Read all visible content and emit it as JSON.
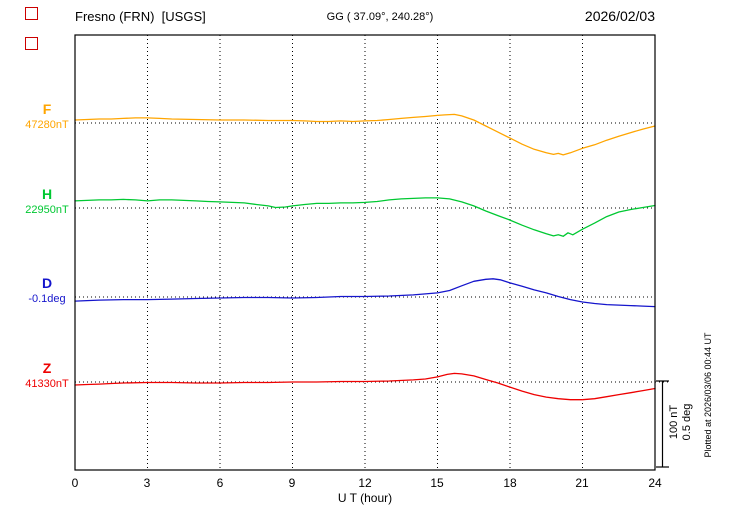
{
  "header": {
    "station": "Fresno (FRN)  [USGS]",
    "coords": "GG ( 37.09°, 240.28°)",
    "date": "2026/02/03"
  },
  "axis": {
    "xlabel": "U T (hour)",
    "ticks": [
      0,
      3,
      6,
      9,
      12,
      15,
      18,
      21,
      24
    ]
  },
  "scalebar": {
    "nt": "100 nT",
    "deg": "0.5 deg"
  },
  "footer": {
    "plotted_at": "Plotted at 2026/03/06 00:44 UT"
  },
  "icons": [
    "broken-image-icon",
    "broken-image-icon"
  ],
  "chart_data": {
    "type": "line",
    "title": "Fresno (FRN)  [USGS]",
    "xlabel": "U T (hour)",
    "x_range": [
      0,
      24
    ],
    "x_ticks": [
      0,
      3,
      6,
      9,
      12,
      15,
      18,
      21,
      24
    ],
    "grid": "dotted vertical every 3 h, dotted baseline per trace",
    "scale": {
      "per_division_nT": 100,
      "per_division_deg": 0.5
    },
    "series": [
      {
        "name": "F",
        "unit": "nT",
        "baseline_value": 47280,
        "baseline_label": "47280nT",
        "color": "#FFA500",
        "x": [
          0,
          0.5,
          1,
          1.5,
          2,
          2.5,
          3,
          3.5,
          4,
          5,
          6,
          7,
          8,
          9,
          9.5,
          10,
          10.5,
          11,
          11.5,
          12,
          12.5,
          13,
          13.5,
          14,
          14.5,
          15,
          15.3,
          15.7,
          16,
          16.5,
          17,
          17.5,
          18,
          18.5,
          19,
          19.5,
          19.8,
          20,
          20.2,
          20.5,
          21,
          21.5,
          22,
          22.5,
          23,
          23.5,
          24
        ],
        "offsets_from_baseline": [
          3.5,
          4.1,
          4.7,
          4.7,
          5.3,
          5.9,
          5.9,
          5.3,
          4.7,
          4.1,
          3.5,
          3.5,
          2.9,
          2.9,
          2.4,
          1.8,
          1.8,
          2.4,
          1.8,
          2.4,
          2.9,
          4.1,
          5.3,
          6.5,
          7.6,
          8.8,
          9.4,
          10.0,
          8.2,
          3.5,
          -3.5,
          -10.6,
          -17.6,
          -24.7,
          -30.6,
          -34.7,
          -36.5,
          -35.3,
          -37.1,
          -34.7,
          -29.4,
          -25.3,
          -20.0,
          -15.3,
          -11.2,
          -7.1,
          -3.5
        ]
      },
      {
        "name": "H",
        "unit": "nT",
        "baseline_value": 22950,
        "baseline_label": "22950nT",
        "color": "#00C832",
        "x": [
          0,
          0.5,
          1,
          1.5,
          2,
          2.5,
          3,
          3.5,
          4,
          4.5,
          5,
          5.5,
          6,
          6.5,
          7,
          7.5,
          8,
          8.3,
          8.7,
          9,
          9.5,
          10,
          10.5,
          11,
          11.5,
          12,
          12.5,
          13,
          13.5,
          14,
          14.5,
          15,
          15.5,
          16,
          16.5,
          17,
          17.5,
          18,
          18.5,
          19,
          19.5,
          19.8,
          20,
          20.2,
          20.4,
          20.6,
          21,
          21.5,
          22,
          22.5,
          23,
          23.5,
          24
        ],
        "offsets_from_baseline": [
          8.2,
          8.8,
          9.4,
          9.4,
          10.0,
          9.4,
          8.2,
          9.4,
          9.4,
          8.8,
          8.2,
          7.6,
          7.1,
          6.5,
          5.9,
          4.1,
          2.4,
          0.6,
          1.2,
          2.4,
          4.1,
          5.3,
          5.3,
          5.9,
          5.9,
          6.5,
          7.6,
          9.4,
          10.6,
          11.2,
          11.8,
          11.8,
          10.6,
          7.1,
          2.4,
          -3.5,
          -8.8,
          -14.1,
          -20.0,
          -25.3,
          -30.0,
          -32.4,
          -31.2,
          -32.9,
          -28.8,
          -31.2,
          -24.7,
          -17.6,
          -10.0,
          -4.7,
          -1.8,
          0.6,
          2.9
        ]
      },
      {
        "name": "D",
        "unit": "deg",
        "baseline_value": -0.1,
        "baseline_label": "-0.1deg",
        "color": "#1515CC",
        "x": [
          0,
          1,
          2,
          3,
          4,
          5,
          6,
          7,
          8,
          9,
          10,
          11,
          12,
          13,
          14,
          15,
          15.5,
          16,
          16.5,
          17,
          17.3,
          17.6,
          18,
          18.5,
          19,
          19.5,
          20,
          20.5,
          21,
          21.5,
          22,
          22.5,
          23,
          23.5,
          24
        ],
        "offsets_from_baseline": [
          -0.024,
          -0.018,
          -0.015,
          -0.015,
          -0.012,
          -0.009,
          -0.006,
          -0.003,
          -0.003,
          -0.006,
          -0.003,
          0.003,
          0.003,
          0.006,
          0.012,
          0.024,
          0.038,
          0.065,
          0.091,
          0.103,
          0.106,
          0.1,
          0.082,
          0.062,
          0.041,
          0.024,
          0.003,
          -0.015,
          -0.029,
          -0.038,
          -0.044,
          -0.047,
          -0.05,
          -0.053,
          -0.056
        ]
      },
      {
        "name": "Z",
        "unit": "nT",
        "baseline_value": 41330,
        "baseline_label": "41330nT",
        "color": "#EE0000",
        "x": [
          0,
          0.5,
          1,
          1.5,
          2,
          3,
          4,
          5,
          6,
          7,
          8,
          9,
          10,
          11,
          12,
          13,
          14,
          14.5,
          15,
          15.4,
          15.7,
          16,
          16.5,
          17,
          17.5,
          18,
          18.5,
          19,
          19.5,
          20,
          20.5,
          21,
          21.5,
          22,
          22.5,
          23,
          23.5,
          24
        ],
        "offsets_from_baseline": [
          -3.5,
          -2.9,
          -2.4,
          -1.8,
          -1.2,
          -0.6,
          -0.6,
          -1.2,
          -1.2,
          -0.6,
          -0.6,
          0.0,
          0.0,
          0.6,
          0.6,
          1.2,
          2.4,
          3.5,
          5.9,
          8.8,
          10.0,
          9.4,
          7.1,
          2.9,
          -1.2,
          -5.9,
          -10.6,
          -14.7,
          -17.6,
          -19.4,
          -20.6,
          -20.6,
          -19.4,
          -17.1,
          -14.7,
          -12.4,
          -10.0,
          -7.6
        ]
      }
    ]
  }
}
